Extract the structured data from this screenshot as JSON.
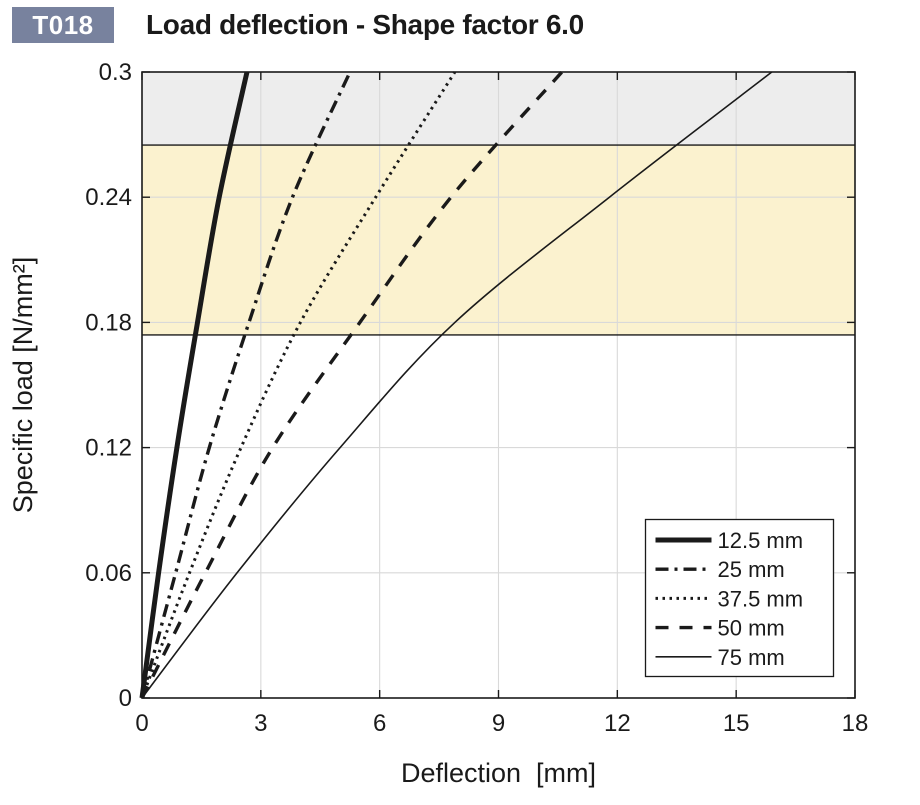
{
  "header": {
    "badge_label": "T018",
    "title": "Load deflection - Shape factor 6.0"
  },
  "colors": {
    "badge_bg": "#78829E",
    "badge_text": "#FFFFFF",
    "axis": "#1A1A1A",
    "grid": "#D9D9D9",
    "curve": "#1A1A1A",
    "band_upper": "#EDEDED",
    "band_recommended": "#FBF2CF",
    "band_edge_line": "#1A1A1A",
    "legend_bg": "#FFFFFF",
    "legend_border": "#1A1A1A"
  },
  "chart_data": {
    "type": "line",
    "title": "Load deflection - Shape factor 6.0",
    "xlabel": "Deflection  [mm]",
    "ylabel": "Specific load [N/mm²]",
    "xlim": [
      0,
      18
    ],
    "ylim": [
      0,
      0.3
    ],
    "xticks": [
      0,
      3,
      6,
      9,
      12,
      15,
      18
    ],
    "xtick_labels": [
      "0",
      "3",
      "6",
      "9",
      "12",
      "15",
      "18"
    ],
    "yticks": [
      0,
      0.06,
      0.12,
      0.18,
      0.24,
      0.3
    ],
    "ytick_labels": [
      "0",
      "0.06",
      "0.12",
      "0.18",
      "0.24",
      "0.3"
    ],
    "grid": true,
    "legend_position": "lower right",
    "loads": [
      0,
      0.06,
      0.12,
      0.18,
      0.24,
      0.3
    ],
    "series": [
      {
        "name": "12.5 mm",
        "style": "solid-thick",
        "deflection": [
          0,
          0.42,
          0.88,
          1.4,
          1.95,
          2.65
        ]
      },
      {
        "name": "25 mm",
        "style": "dash-dot",
        "deflection": [
          0,
          0.85,
          1.7,
          2.7,
          3.8,
          5.25
        ]
      },
      {
        "name": "37.5 mm",
        "style": "dotted",
        "deflection": [
          0,
          1.2,
          2.5,
          4.0,
          5.9,
          7.9
        ]
      },
      {
        "name": "50 mm",
        "style": "dashed",
        "deflection": [
          0,
          1.6,
          3.3,
          5.5,
          7.8,
          10.6
        ]
      },
      {
        "name": "75 mm",
        "style": "solid-thin",
        "deflection": [
          0,
          2.4,
          5.0,
          7.9,
          11.8,
          15.9
        ]
      }
    ],
    "bands": [
      {
        "name": "upper-load-band",
        "from": 0.265,
        "to": 0.3,
        "color": "#EDEDED"
      },
      {
        "name": "recommended-load-band",
        "from": 0.174,
        "to": 0.265,
        "color": "#FBF2CF"
      }
    ]
  }
}
